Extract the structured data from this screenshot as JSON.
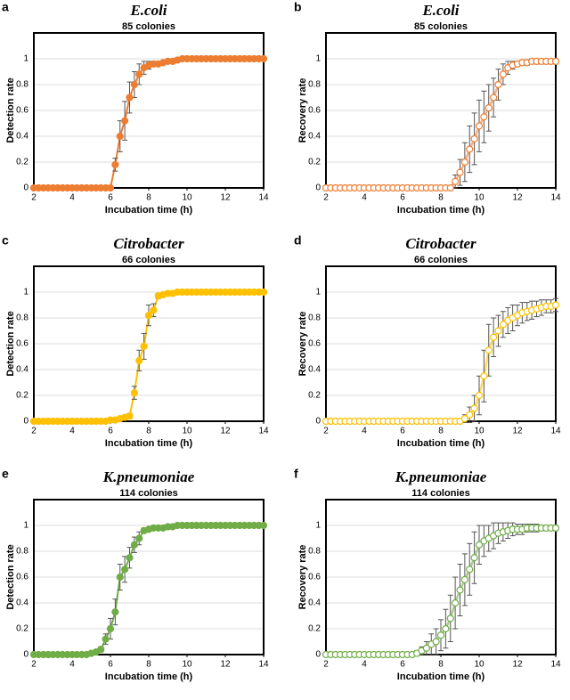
{
  "chart_data": [
    {
      "type": "line",
      "panel_label": "a",
      "title": "E.coli",
      "subtitle": "85 colonies",
      "x_label": "Incubation time (h)",
      "y_label": "Detection rate",
      "color": "#ED7D31",
      "marker": "filled",
      "error_color": "#555555",
      "grid": true,
      "xlim": [
        2,
        14
      ],
      "ylim": [
        0,
        1.2
      ],
      "xticks": [
        2,
        4,
        6,
        8,
        10,
        12,
        14
      ],
      "yticks": [
        0,
        0.2,
        0.4,
        0.6,
        0.8,
        1
      ],
      "x": [
        2,
        2.25,
        2.5,
        2.75,
        3,
        3.25,
        3.5,
        3.75,
        4,
        4.25,
        4.5,
        4.75,
        5,
        5.25,
        5.5,
        5.75,
        6,
        6.25,
        6.5,
        6.75,
        7,
        7.25,
        7.5,
        7.75,
        8,
        8.25,
        8.5,
        8.75,
        9,
        9.25,
        9.5,
        9.75,
        10,
        10.25,
        10.5,
        10.75,
        11,
        11.25,
        11.5,
        11.75,
        12,
        12.25,
        12.5,
        12.75,
        13,
        13.25,
        13.5,
        13.75,
        14
      ],
      "values": [
        0,
        0,
        0,
        0,
        0,
        0,
        0,
        0,
        0,
        0,
        0,
        0,
        0,
        0,
        0,
        0,
        0,
        0.18,
        0.4,
        0.52,
        0.7,
        0.8,
        0.88,
        0.93,
        0.95,
        0.96,
        0.96,
        0.97,
        0.98,
        0.98,
        0.99,
        1,
        1,
        1,
        1,
        1,
        1,
        1,
        1,
        1,
        1,
        1,
        1,
        1,
        1,
        1,
        1,
        1,
        1
      ],
      "errors": [
        null,
        null,
        null,
        null,
        null,
        null,
        null,
        null,
        null,
        null,
        null,
        null,
        null,
        null,
        null,
        null,
        null,
        0.05,
        0.12,
        0.15,
        0.12,
        0.1,
        0.08,
        0.05,
        0.03,
        0.02,
        null,
        null,
        null,
        null,
        null,
        null,
        null,
        null,
        null,
        null,
        null,
        null,
        null,
        null,
        null,
        null,
        null,
        null,
        null,
        null,
        null,
        null,
        null
      ]
    },
    {
      "type": "line",
      "panel_label": "b",
      "title": "E.coli",
      "subtitle": "85 colonies",
      "x_label": "Incubation time (h)",
      "y_label": "Recovery rate",
      "color": "#ED7D31",
      "marker": "open",
      "error_color": "#555555",
      "grid": true,
      "xlim": [
        2,
        14
      ],
      "ylim": [
        0,
        1.2
      ],
      "xticks": [
        2,
        4,
        6,
        8,
        10,
        12,
        14
      ],
      "yticks": [
        0,
        0.2,
        0.4,
        0.6,
        0.8,
        1
      ],
      "x": [
        2,
        2.25,
        2.5,
        2.75,
        3,
        3.25,
        3.5,
        3.75,
        4,
        4.25,
        4.5,
        4.75,
        5,
        5.25,
        5.5,
        5.75,
        6,
        6.25,
        6.5,
        6.75,
        7,
        7.25,
        7.5,
        7.75,
        8,
        8.25,
        8.5,
        8.75,
        9,
        9.25,
        9.5,
        9.75,
        10,
        10.25,
        10.5,
        10.75,
        11,
        11.25,
        11.5,
        11.75,
        12,
        12.25,
        12.5,
        12.75,
        13,
        13.25,
        13.5,
        13.75,
        14
      ],
      "values": [
        0,
        0,
        0,
        0,
        0,
        0,
        0,
        0,
        0,
        0,
        0,
        0,
        0,
        0,
        0,
        0,
        0,
        0,
        0,
        0,
        0,
        0,
        0,
        0,
        0,
        0,
        0,
        0.05,
        0.12,
        0.2,
        0.3,
        0.38,
        0.48,
        0.55,
        0.62,
        0.7,
        0.8,
        0.88,
        0.93,
        0.95,
        0.96,
        0.97,
        0.97,
        0.98,
        0.98,
        0.98,
        0.98,
        0.98,
        0.98
      ],
      "errors": [
        null,
        null,
        null,
        null,
        null,
        null,
        null,
        null,
        null,
        null,
        null,
        null,
        null,
        null,
        null,
        null,
        null,
        null,
        null,
        null,
        null,
        null,
        null,
        null,
        null,
        null,
        null,
        0.05,
        0.1,
        0.15,
        0.18,
        0.2,
        0.2,
        0.2,
        0.18,
        0.15,
        0.12,
        0.08,
        0.05,
        0.03,
        0.02,
        0.02,
        0.02,
        0.02,
        0.02,
        0.02,
        0.02,
        0.02,
        0.02
      ]
    },
    {
      "type": "line",
      "panel_label": "c",
      "title": "Citrobacter",
      "subtitle": "66 colonies",
      "x_label": "Incubation time (h)",
      "y_label": "Detection rate",
      "color": "#FFC000",
      "marker": "filled",
      "error_color": "#555555",
      "grid": true,
      "xlim": [
        2,
        14
      ],
      "ylim": [
        0,
        1.2
      ],
      "xticks": [
        2,
        4,
        6,
        8,
        10,
        12,
        14
      ],
      "yticks": [
        0,
        0.2,
        0.4,
        0.6,
        0.8,
        1
      ],
      "x": [
        2,
        2.25,
        2.5,
        2.75,
        3,
        3.25,
        3.5,
        3.75,
        4,
        4.25,
        4.5,
        4.75,
        5,
        5.25,
        5.5,
        5.75,
        6,
        6.25,
        6.5,
        6.75,
        7,
        7.25,
        7.5,
        7.75,
        8,
        8.25,
        8.5,
        8.75,
        9,
        9.25,
        9.5,
        9.75,
        10,
        10.25,
        10.5,
        10.75,
        11,
        11.25,
        11.5,
        11.75,
        12,
        12.25,
        12.5,
        12.75,
        13,
        13.25,
        13.5,
        13.75,
        14
      ],
      "values": [
        0,
        0,
        0,
        0,
        0,
        0,
        0,
        0,
        0,
        0,
        0,
        0,
        0,
        0,
        0,
        0,
        0.01,
        0.01,
        0.02,
        0.03,
        0.04,
        0.22,
        0.47,
        0.58,
        0.82,
        0.86,
        0.97,
        0.98,
        0.99,
        0.99,
        1,
        1,
        1,
        1,
        1,
        1,
        1,
        1,
        1,
        1,
        1,
        1,
        1,
        1,
        1,
        1,
        1,
        1,
        1
      ],
      "errors": [
        null,
        null,
        null,
        null,
        null,
        null,
        null,
        null,
        null,
        null,
        null,
        null,
        null,
        null,
        null,
        null,
        null,
        null,
        null,
        null,
        0.02,
        0.05,
        0.08,
        0.1,
        0.08,
        0.05,
        0.02,
        null,
        null,
        null,
        null,
        null,
        null,
        null,
        null,
        null,
        null,
        null,
        null,
        null,
        null,
        null,
        null,
        null,
        null,
        null,
        null,
        null,
        null
      ]
    },
    {
      "type": "line",
      "panel_label": "d",
      "title": "Citrobacter",
      "subtitle": "66 colonies",
      "x_label": "Incubation time (h)",
      "y_label": "Recovery rate",
      "color": "#FFC000",
      "marker": "open",
      "error_color": "#555555",
      "grid": true,
      "xlim": [
        2,
        14
      ],
      "ylim": [
        0,
        1.2
      ],
      "xticks": [
        2,
        4,
        6,
        8,
        10,
        12,
        14
      ],
      "yticks": [
        0,
        0.2,
        0.4,
        0.6,
        0.8,
        1
      ],
      "x": [
        2,
        2.25,
        2.5,
        2.75,
        3,
        3.25,
        3.5,
        3.75,
        4,
        4.25,
        4.5,
        4.75,
        5,
        5.25,
        5.5,
        5.75,
        6,
        6.25,
        6.5,
        6.75,
        7,
        7.25,
        7.5,
        7.75,
        8,
        8.25,
        8.5,
        8.75,
        9,
        9.25,
        9.5,
        9.75,
        10,
        10.25,
        10.5,
        10.75,
        11,
        11.25,
        11.5,
        11.75,
        12,
        12.25,
        12.5,
        12.75,
        13,
        13.25,
        13.5,
        13.75,
        14
      ],
      "values": [
        0,
        0,
        0,
        0,
        0,
        0,
        0,
        0,
        0,
        0,
        0,
        0,
        0,
        0,
        0,
        0,
        0,
        0,
        0,
        0,
        0,
        0,
        0,
        0,
        0,
        0,
        0,
        0,
        0,
        0.02,
        0.05,
        0.1,
        0.2,
        0.35,
        0.55,
        0.65,
        0.7,
        0.75,
        0.78,
        0.8,
        0.82,
        0.84,
        0.85,
        0.86,
        0.87,
        0.88,
        0.89,
        0.89,
        0.9
      ],
      "errors": [
        null,
        null,
        null,
        null,
        null,
        null,
        null,
        null,
        null,
        null,
        null,
        null,
        null,
        null,
        null,
        null,
        null,
        null,
        null,
        null,
        null,
        null,
        null,
        null,
        null,
        null,
        null,
        null,
        null,
        0.03,
        0.06,
        0.1,
        0.15,
        0.2,
        0.2,
        0.15,
        0.12,
        0.1,
        0.1,
        0.1,
        0.08,
        0.08,
        0.07,
        0.07,
        0.06,
        0.06,
        0.05,
        0.05,
        0.05
      ]
    },
    {
      "type": "line",
      "panel_label": "e",
      "title": "K.pneumoniae",
      "subtitle": "114 colonies",
      "x_label": "Incubation time (h)",
      "y_label": "Detection rate",
      "color": "#70AD47",
      "marker": "filled",
      "error_color": "#555555",
      "grid": true,
      "xlim": [
        2,
        14
      ],
      "ylim": [
        0,
        1.2
      ],
      "xticks": [
        2,
        4,
        6,
        8,
        10,
        12,
        14
      ],
      "yticks": [
        0,
        0.2,
        0.4,
        0.6,
        0.8,
        1
      ],
      "x": [
        2,
        2.25,
        2.5,
        2.75,
        3,
        3.25,
        3.5,
        3.75,
        4,
        4.25,
        4.5,
        4.75,
        5,
        5.25,
        5.5,
        5.75,
        6,
        6.25,
        6.5,
        6.75,
        7,
        7.25,
        7.5,
        7.75,
        8,
        8.25,
        8.5,
        8.75,
        9,
        9.25,
        9.5,
        9.75,
        10,
        10.25,
        10.5,
        10.75,
        11,
        11.25,
        11.5,
        11.75,
        12,
        12.25,
        12.5,
        12.75,
        13,
        13.25,
        13.5,
        13.75,
        14
      ],
      "values": [
        0,
        0,
        0,
        0,
        0,
        0,
        0,
        0,
        0,
        0,
        0,
        0,
        0.01,
        0.02,
        0.04,
        0.12,
        0.2,
        0.33,
        0.6,
        0.66,
        0.75,
        0.85,
        0.9,
        0.96,
        0.97,
        0.98,
        0.98,
        0.98,
        0.99,
        0.99,
        1,
        1,
        1,
        1,
        1,
        1,
        1,
        1,
        1,
        1,
        1,
        1,
        1,
        1,
        1,
        1,
        1,
        1,
        1
      ],
      "errors": [
        null,
        null,
        null,
        null,
        null,
        null,
        null,
        null,
        null,
        null,
        null,
        null,
        null,
        null,
        0.02,
        0.04,
        0.08,
        0.1,
        0.1,
        0.1,
        0.08,
        0.06,
        0.05,
        0.02,
        null,
        null,
        null,
        null,
        null,
        null,
        null,
        null,
        null,
        null,
        null,
        null,
        null,
        null,
        null,
        null,
        null,
        null,
        null,
        null,
        null,
        null,
        null,
        null,
        null
      ]
    },
    {
      "type": "line",
      "panel_label": "f",
      "title": "K.pneumoniae",
      "subtitle": "114 colonies",
      "x_label": "Incubation time (h)",
      "y_label": "Recovery rate",
      "color": "#70AD47",
      "marker": "open",
      "error_color": "#555555",
      "grid": true,
      "xlim": [
        2,
        14
      ],
      "ylim": [
        0,
        1.2
      ],
      "xticks": [
        2,
        4,
        6,
        8,
        10,
        12,
        14
      ],
      "yticks": [
        0,
        0.2,
        0.4,
        0.6,
        0.8,
        1
      ],
      "x": [
        2,
        2.25,
        2.5,
        2.75,
        3,
        3.25,
        3.5,
        3.75,
        4,
        4.25,
        4.5,
        4.75,
        5,
        5.25,
        5.5,
        5.75,
        6,
        6.25,
        6.5,
        6.75,
        7,
        7.25,
        7.5,
        7.75,
        8,
        8.25,
        8.5,
        8.75,
        9,
        9.25,
        9.5,
        9.75,
        10,
        10.25,
        10.5,
        10.75,
        11,
        11.25,
        11.5,
        11.75,
        12,
        12.25,
        12.5,
        12.75,
        13,
        13.25,
        13.5,
        13.75,
        14
      ],
      "values": [
        0,
        0,
        0,
        0,
        0,
        0,
        0,
        0,
        0,
        0,
        0,
        0,
        0,
        0,
        0,
        0,
        0,
        0,
        0,
        0.01,
        0.03,
        0.05,
        0.08,
        0.1,
        0.15,
        0.2,
        0.28,
        0.4,
        0.5,
        0.58,
        0.66,
        0.75,
        0.85,
        0.88,
        0.9,
        0.92,
        0.94,
        0.95,
        0.96,
        0.97,
        0.97,
        0.97,
        0.98,
        0.98,
        0.98,
        0.98,
        0.98,
        0.98,
        0.98
      ],
      "errors": [
        null,
        null,
        null,
        null,
        null,
        null,
        null,
        null,
        null,
        null,
        null,
        null,
        null,
        null,
        null,
        null,
        null,
        null,
        null,
        0.02,
        0.03,
        0.05,
        0.08,
        0.1,
        0.12,
        0.15,
        0.18,
        0.2,
        0.2,
        0.2,
        0.2,
        0.2,
        0.15,
        0.12,
        0.1,
        0.1,
        0.08,
        0.07,
        0.06,
        0.05,
        0.04,
        0.04,
        0.03,
        0.03,
        0.03,
        0.02,
        0.02,
        0.02,
        0.02
      ]
    }
  ]
}
